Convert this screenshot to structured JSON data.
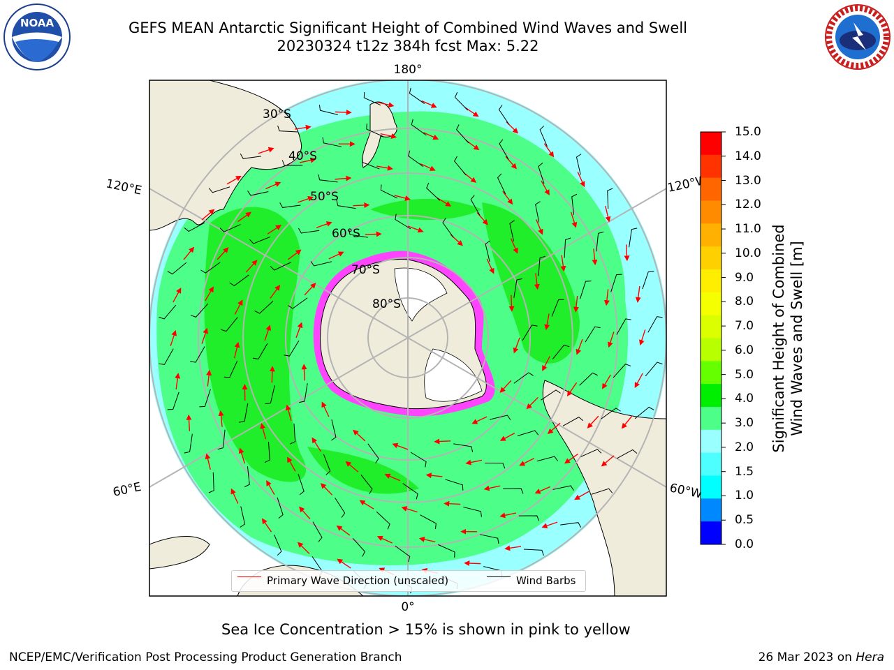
{
  "header": {
    "title_line1": "GEFS MEAN Antarctic Significant Height of Combined Wind Waves and Swell",
    "title_line2": "20230324 t12z 384h fcst   Max: 5.22"
  },
  "logos": {
    "left": {
      "text": "NOAA",
      "ring_text": "NATIONAL OCEANIC AND ATMOSPHERIC ADMINISTRATION · U.S. DEPARTMENT OF COMMERCE"
    },
    "right": {
      "ring_text": "NATIONAL WEATHER SERVICE"
    }
  },
  "map": {
    "longitude_labels": {
      "top": "180°",
      "bottom": "0°",
      "upper_left": "120°E",
      "upper_right": "120°W",
      "lower_left": "60°E",
      "lower_right": "60°W"
    },
    "latitude_labels": [
      "30°S",
      "40°S",
      "50°S",
      "60°S",
      "70°S",
      "80°S"
    ],
    "colors": {
      "land": "#efecdc",
      "antarctic_ice_sheet": "#ffffff",
      "low_wave": "#99ffff",
      "mid_wave": "#4dff88",
      "high_wave": "#1aeb1a",
      "sea_ice": "#ff44ff",
      "wave_arrow": "#ff0000",
      "wind_barb": "#000000",
      "grid": "#b4b4b4"
    }
  },
  "legend": {
    "primary_wave": "Primary Wave Direction (unscaled)",
    "wind_barbs": "Wind Barbs"
  },
  "colorbar": {
    "label_line1": "Significant Height of Combined",
    "label_line2": "Wind Waves and Swell [m]",
    "ticks": [
      "15.0",
      "14.0",
      "13.0",
      "12.0",
      "11.0",
      "10.0",
      "9.0",
      "8.0",
      "7.0",
      "6.0",
      "5.0",
      "4.0",
      "3.0",
      "2.0",
      "1.5",
      "1.0",
      "0.5",
      "0.0"
    ],
    "colors_top_to_bottom": [
      "#ff0000",
      "#ff3300",
      "#ff6600",
      "#ff8c00",
      "#ffb000",
      "#ffd000",
      "#ffee00",
      "#f5ff00",
      "#dcff00",
      "#b8ff00",
      "#66ff00",
      "#00ee00",
      "#4dff88",
      "#99ffff",
      "#4dffff",
      "#00ffff",
      "#0088ff",
      "#0000ff"
    ]
  },
  "footer": {
    "note": "Sea Ice Concentration > 15% is shown in pink to yellow",
    "left": "NCEP/EMC/Verification Post Processing Product Generation Branch",
    "date": "26 Mar 2023",
    "on": " on ",
    "machine": "Hera"
  }
}
